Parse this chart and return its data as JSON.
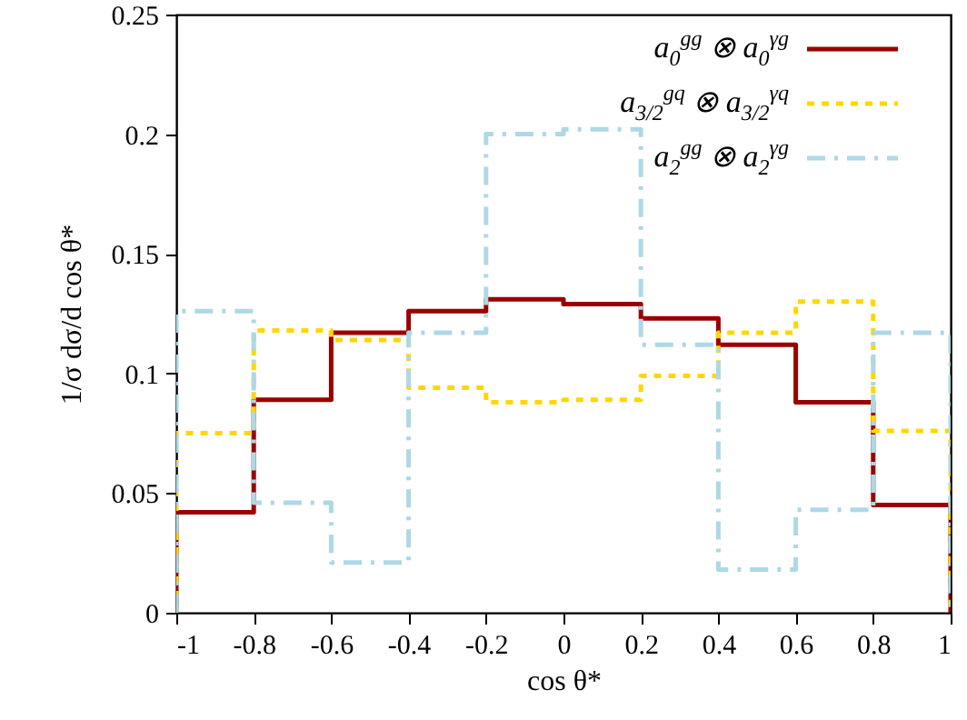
{
  "chart_data": {
    "type": "histogram",
    "xlabel": "cos θ*",
    "ylabel": "1/σ dσ/d cos θ*",
    "bins": [
      -1,
      -0.8,
      -0.6,
      -0.4,
      -0.2,
      0,
      0.2,
      0.4,
      0.6,
      0.8,
      1
    ],
    "series": [
      {
        "name": "a$_{0}$$^{gg}$ ⊗ a$_{0}$$^{γg}$",
        "color": "#9b0000",
        "line_style": "solid",
        "values": [
          0.042,
          0.089,
          0.117,
          0.126,
          0.131,
          0.129,
          0.123,
          0.112,
          0.088,
          0.045
        ]
      },
      {
        "name": "a$_{3/2}$$^{gq}$ ⊗ a$_{3/2}$$^{γq}$",
        "color": "#ffd700",
        "line_style": "dotted",
        "values": [
          0.075,
          0.118,
          0.114,
          0.094,
          0.088,
          0.089,
          0.099,
          0.117,
          0.13,
          0.076
        ]
      },
      {
        "name": "a$_{2}$$^{gg}$ ⊗ a$_{2}$$^{γg}$",
        "color": "#add8e6",
        "line_style": "dashed",
        "values": [
          0.126,
          0.046,
          0.021,
          0.117,
          0.2,
          0.202,
          0.112,
          0.018,
          0.043,
          0.117
        ]
      }
    ],
    "xlim": [
      -1,
      1
    ],
    "xticks": [
      -1,
      -0.8,
      -0.6,
      -0.4,
      -0.2,
      0,
      0.2,
      0.4,
      0.6,
      0.8,
      1
    ],
    "ylim": [
      0,
      0.25
    ],
    "yticks": [
      0,
      0.05,
      0.1,
      0.15,
      0.2,
      0.25
    ],
    "legend": "top right"
  }
}
